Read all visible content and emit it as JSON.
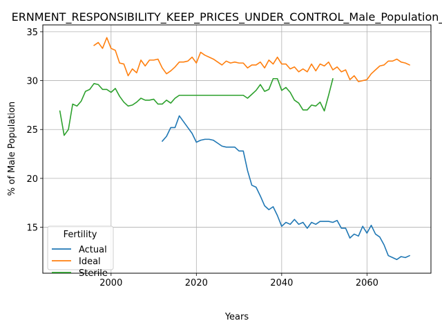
{
  "chart_data": {
    "type": "line",
    "title": "ERNMENT_RESPONSIBILITY_KEEP_PRICES_UNDER_CONTROL_Male_Population_",
    "xlabel": "Years",
    "ylabel": "% of Male Population",
    "xlim": [
      1984,
      2075
    ],
    "ylim": [
      10.3,
      35.7
    ],
    "xticks": [
      2000,
      2020,
      2040,
      2060
    ],
    "yticks": [
      15,
      20,
      25,
      30,
      35
    ],
    "grid": true,
    "legend": {
      "title": "Fertility",
      "placement": "lower-left"
    },
    "series": [
      {
        "name": "Actual",
        "color": "#1f77b4",
        "x": [
          2012,
          2013,
          2014,
          2015,
          2016,
          2017,
          2018,
          2019,
          2020,
          2021,
          2022,
          2023,
          2024,
          2025,
          2026,
          2027,
          2028,
          2029,
          2030,
          2031,
          2032,
          2033,
          2034,
          2035,
          2036,
          2037,
          2038,
          2039,
          2040,
          2041,
          2042,
          2043,
          2044,
          2045,
          2046,
          2047,
          2048,
          2049,
          2050,
          2051,
          2052,
          2053,
          2054,
          2055,
          2056,
          2057,
          2058,
          2059,
          2060,
          2061,
          2062,
          2063,
          2064,
          2065,
          2066,
          2067,
          2068,
          2069,
          2070
        ],
        "y": [
          23.8,
          24.3,
          25.2,
          25.2,
          26.4,
          25.8,
          25.2,
          24.6,
          23.7,
          23.9,
          24.0,
          24.0,
          23.9,
          23.6,
          23.3,
          23.2,
          23.2,
          23.2,
          22.8,
          22.8,
          20.8,
          19.3,
          19.1,
          18.2,
          17.2,
          16.8,
          17.1,
          16.2,
          15.1,
          15.5,
          15.3,
          15.8,
          15.3,
          15.5,
          14.9,
          15.5,
          15.3,
          15.6,
          15.6,
          15.6,
          15.5,
          15.7,
          14.9,
          14.9,
          13.9,
          14.3,
          14.1,
          15.1,
          14.4,
          15.2,
          14.3,
          14.0,
          13.2,
          12.1,
          11.9,
          11.7,
          12.0,
          11.9,
          12.1
        ]
      },
      {
        "name": "Ideal",
        "color": "#ff7f0e",
        "x": [
          1996,
          1997,
          1998,
          1999,
          2000,
          2001,
          2002,
          2003,
          2004,
          2005,
          2006,
          2007,
          2008,
          2009,
          2010,
          2011,
          2012,
          2013,
          2014,
          2015,
          2016,
          2017,
          2018,
          2019,
          2020,
          2021,
          2022,
          2023,
          2024,
          2025,
          2026,
          2027,
          2028,
          2029,
          2030,
          2031,
          2032,
          2033,
          2034,
          2035,
          2036,
          2037,
          2038,
          2039,
          2040,
          2041,
          2042,
          2043,
          2044,
          2045,
          2046,
          2047,
          2048,
          2049,
          2050,
          2051,
          2052,
          2053,
          2054,
          2055,
          2056,
          2057,
          2058,
          2059,
          2060,
          2061,
          2062,
          2063,
          2064,
          2065,
          2066,
          2067,
          2068,
          2069,
          2070
        ],
        "y": [
          33.6,
          33.9,
          33.3,
          34.4,
          33.3,
          33.1,
          31.8,
          31.7,
          30.5,
          31.2,
          30.8,
          32.1,
          31.5,
          32.1,
          32.1,
          32.2,
          31.3,
          30.7,
          31.0,
          31.4,
          31.9,
          31.9,
          32.0,
          32.4,
          31.8,
          32.9,
          32.6,
          32.4,
          32.2,
          31.9,
          31.6,
          32.0,
          31.8,
          31.9,
          31.8,
          31.8,
          31.3,
          31.6,
          31.6,
          31.9,
          31.3,
          32.1,
          31.7,
          32.4,
          31.7,
          31.7,
          31.2,
          31.4,
          30.9,
          31.2,
          30.9,
          31.7,
          31.0,
          31.7,
          31.5,
          31.9,
          31.1,
          31.4,
          30.9,
          31.1,
          30.1,
          30.5,
          29.9,
          30.0,
          30.1,
          30.7,
          31.1,
          31.5,
          31.6,
          32.0,
          32.0,
          32.2,
          31.9,
          31.8,
          31.6
        ]
      },
      {
        "name": "Sterile",
        "color": "#2ca02c",
        "x": [
          1988,
          1989,
          1990,
          1991,
          1992,
          1993,
          1994,
          1995,
          1996,
          1997,
          1998,
          1999,
          2000,
          2001,
          2002,
          2003,
          2004,
          2005,
          2006,
          2007,
          2008,
          2009,
          2010,
          2011,
          2012,
          2013,
          2014,
          2015,
          2016,
          2017,
          2018,
          2019,
          2020,
          2021,
          2022,
          2023,
          2024,
          2025,
          2026,
          2027,
          2028,
          2029,
          2030,
          2031,
          2032,
          2033,
          2034,
          2035,
          2036,
          2037,
          2038,
          2039,
          2040,
          2041,
          2042,
          2043,
          2044,
          2045,
          2046,
          2047,
          2048,
          2049,
          2050,
          2051,
          2052
        ],
        "y": [
          26.9,
          24.4,
          25.0,
          27.6,
          27.4,
          27.9,
          28.9,
          29.1,
          29.7,
          29.6,
          29.1,
          29.1,
          28.8,
          29.2,
          28.4,
          27.8,
          27.4,
          27.5,
          27.8,
          28.2,
          28.0,
          28.0,
          28.1,
          27.6,
          27.6,
          28.0,
          27.7,
          28.2,
          28.5,
          28.5,
          28.5,
          28.5,
          28.5,
          28.5,
          28.5,
          28.5,
          28.5,
          28.5,
          28.5,
          28.5,
          28.5,
          28.5,
          28.5,
          28.5,
          28.2,
          28.6,
          29.0,
          29.6,
          28.9,
          29.1,
          30.2,
          30.2,
          29.0,
          29.3,
          28.8,
          28.0,
          27.7,
          27.0,
          27.0,
          27.5,
          27.4,
          27.8,
          26.9,
          28.5,
          30.2
        ]
      }
    ]
  }
}
